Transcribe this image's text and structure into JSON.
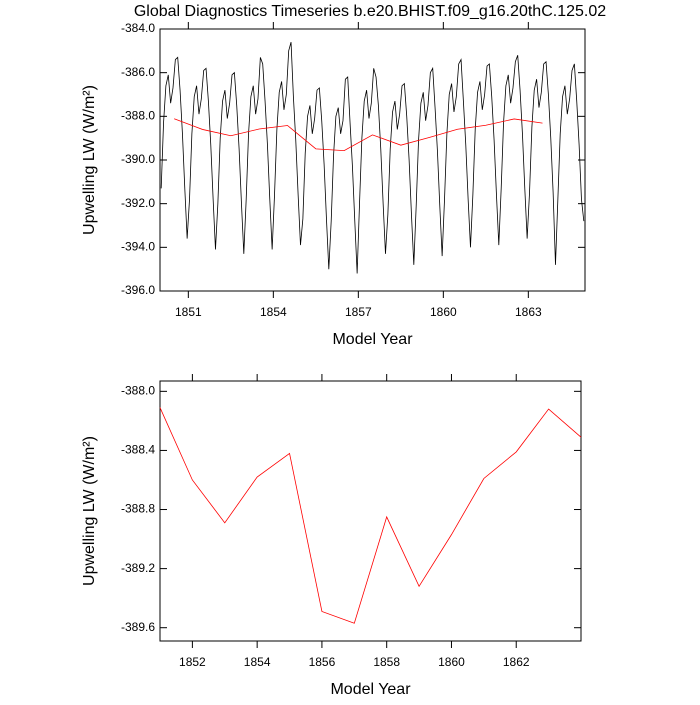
{
  "chart_data": [
    {
      "type": "line",
      "title": "Global Diagnostics Timeseries b.e20.BHIST.f09_g16.20thC.125.02",
      "xlabel": "Model Year",
      "ylabel": "Upwelling LW (W/m²)",
      "xlim": [
        1850,
        1865
      ],
      "xticks": [
        1851,
        1854,
        1857,
        1860,
        1863
      ],
      "ylim": [
        -396,
        -384
      ],
      "yticks": [
        {
          "value": -396,
          "label": "-396.0"
        },
        {
          "value": -394,
          "label": "-394.0"
        },
        {
          "value": -392,
          "label": "-392.0"
        },
        {
          "value": -390,
          "label": "-390.0"
        },
        {
          "value": -388,
          "label": "-388.0"
        },
        {
          "value": -386,
          "label": "-386.0"
        },
        {
          "value": -384,
          "label": "-384.0"
        }
      ],
      "series": [
        {
          "color": "#000000",
          "x": [
            1850.042,
            1850.125,
            1850.208,
            1850.292,
            1850.375,
            1850.458,
            1850.542,
            1850.625,
            1850.708,
            1850.792,
            1850.875,
            1850.958,
            1851.042,
            1851.125,
            1851.208,
            1851.292,
            1851.375,
            1851.458,
            1851.542,
            1851.625,
            1851.708,
            1851.792,
            1851.875,
            1851.958,
            1852.042,
            1852.125,
            1852.208,
            1852.292,
            1852.375,
            1852.458,
            1852.542,
            1852.625,
            1852.708,
            1852.792,
            1852.875,
            1852.958,
            1853.042,
            1853.125,
            1853.208,
            1853.292,
            1853.375,
            1853.458,
            1853.542,
            1853.625,
            1853.708,
            1853.792,
            1853.875,
            1853.958,
            1854.042,
            1854.125,
            1854.208,
            1854.292,
            1854.375,
            1854.458,
            1854.542,
            1854.625,
            1854.708,
            1854.792,
            1854.875,
            1854.958,
            1855.042,
            1855.125,
            1855.208,
            1855.292,
            1855.375,
            1855.458,
            1855.542,
            1855.625,
            1855.708,
            1855.792,
            1855.875,
            1855.958,
            1856.042,
            1856.125,
            1856.208,
            1856.292,
            1856.375,
            1856.458,
            1856.542,
            1856.625,
            1856.708,
            1856.792,
            1856.875,
            1856.958,
            1857.042,
            1857.125,
            1857.208,
            1857.292,
            1857.375,
            1857.458,
            1857.542,
            1857.625,
            1857.708,
            1857.792,
            1857.875,
            1857.958,
            1858.042,
            1858.125,
            1858.208,
            1858.292,
            1858.375,
            1858.458,
            1858.542,
            1858.625,
            1858.708,
            1858.792,
            1858.875,
            1858.958,
            1859.042,
            1859.125,
            1859.208,
            1859.292,
            1859.375,
            1859.458,
            1859.542,
            1859.625,
            1859.708,
            1859.792,
            1859.875,
            1859.958,
            1860.042,
            1860.125,
            1860.208,
            1860.292,
            1860.375,
            1860.458,
            1860.542,
            1860.625,
            1860.708,
            1860.792,
            1860.875,
            1860.958,
            1861.042,
            1861.125,
            1861.208,
            1861.292,
            1861.375,
            1861.458,
            1861.542,
            1861.625,
            1861.708,
            1861.792,
            1861.875,
            1861.958,
            1862.042,
            1862.125,
            1862.208,
            1862.292,
            1862.375,
            1862.458,
            1862.542,
            1862.625,
            1862.708,
            1862.792,
            1862.875,
            1862.958,
            1863.042,
            1863.125,
            1863.208,
            1863.292,
            1863.375,
            1863.458,
            1863.542,
            1863.625,
            1863.708,
            1863.792,
            1863.875,
            1863.958,
            1864.042,
            1864.125,
            1864.208,
            1864.292,
            1864.375,
            1864.458,
            1864.542,
            1864.625,
            1864.708,
            1864.792,
            1864.875,
            1864.958
          ],
          "values": [
            -391.3,
            -388.3,
            -386.6,
            -386.1,
            -387.4,
            -386.7,
            -385.4,
            -385.3,
            -386.8,
            -388.8,
            -391.3,
            -393.6,
            -391.8,
            -388.8,
            -387.1,
            -386.6,
            -387.9,
            -387.2,
            -385.9,
            -385.8,
            -387.3,
            -389.3,
            -391.8,
            -394.1,
            -392.0,
            -389.0,
            -387.3,
            -386.8,
            -388.1,
            -387.4,
            -386.1,
            -386.0,
            -387.5,
            -389.5,
            -392.0,
            -394.3,
            -391.8,
            -388.8,
            -387.1,
            -386.6,
            -387.9,
            -387.2,
            -385.3,
            -385.6,
            -387.3,
            -389.3,
            -391.8,
            -394.1,
            -391.6,
            -388.6,
            -386.9,
            -386.4,
            -387.7,
            -387.0,
            -385.0,
            -384.6,
            -387.1,
            -389.1,
            -391.6,
            -393.9,
            -392.7,
            -389.7,
            -388.0,
            -387.5,
            -388.8,
            -388.1,
            -386.8,
            -386.7,
            -388.2,
            -390.2,
            -392.7,
            -395.0,
            -392.8,
            -389.8,
            -388.0,
            -387.6,
            -388.8,
            -388.2,
            -386.3,
            -386.2,
            -388.3,
            -390.3,
            -392.8,
            -395.2,
            -392.0,
            -389.0,
            -387.3,
            -386.8,
            -388.1,
            -387.4,
            -385.8,
            -386.2,
            -387.5,
            -389.5,
            -392.0,
            -394.3,
            -392.5,
            -389.5,
            -387.8,
            -387.3,
            -388.6,
            -387.9,
            -386.6,
            -386.5,
            -388.0,
            -390.0,
            -392.5,
            -394.8,
            -392.1,
            -389.1,
            -387.4,
            -386.9,
            -388.2,
            -387.5,
            -386.0,
            -385.8,
            -387.6,
            -389.6,
            -392.1,
            -394.4,
            -391.8,
            -388.8,
            -387.0,
            -386.5,
            -387.8,
            -387.1,
            -385.6,
            -385.4,
            -387.3,
            -389.3,
            -391.8,
            -394.0,
            -391.6,
            -388.6,
            -386.9,
            -386.4,
            -387.7,
            -387.0,
            -385.7,
            -385.6,
            -387.1,
            -389.1,
            -391.6,
            -393.9,
            -391.3,
            -388.3,
            -386.6,
            -386.1,
            -387.4,
            -386.7,
            -385.5,
            -385.2,
            -386.8,
            -388.8,
            -391.3,
            -393.6,
            -391.5,
            -388.5,
            -386.8,
            -386.3,
            -387.6,
            -386.9,
            -385.6,
            -385.5,
            -387.0,
            -389.0,
            -391.5,
            -394.8,
            -391.8,
            -388.8,
            -387.1,
            -386.6,
            -387.9,
            -387.2,
            -385.9,
            -385.6,
            -387.3,
            -389.3,
            -391.8,
            -392.8
          ]
        },
        {
          "color": "#ff0000",
          "x": [
            1850.5,
            1851.5,
            1852.5,
            1853.5,
            1854.5,
            1855.5,
            1856.5,
            1857.5,
            1858.5,
            1859.5,
            1860.5,
            1861.5,
            1862.5,
            1863.5
          ],
          "values": [
            -388.11,
            -388.6,
            -388.89,
            -388.58,
            -388.42,
            -389.49,
            -389.57,
            -388.85,
            -389.32,
            -388.97,
            -388.59,
            -388.41,
            -388.12,
            -388.31
          ]
        }
      ]
    },
    {
      "type": "line",
      "xlabel": "Model Year",
      "ylabel": "Upwelling LW (W/m²)",
      "xlim": [
        1851,
        1864
      ],
      "xticks": [
        1852,
        1854,
        1856,
        1858,
        1860,
        1862
      ],
      "ylim": [
        -389.69,
        -387.93
      ],
      "yticks": [
        {
          "value": -389.6,
          "label": "-389.6"
        },
        {
          "value": -389.2,
          "label": "-389.2"
        },
        {
          "value": -388.8,
          "label": "-388.8"
        },
        {
          "value": -388.4,
          "label": "-388.4"
        },
        {
          "value": -388.0,
          "label": "-388.0"
        }
      ],
      "series": [
        {
          "color": "#ff0000",
          "x": [
            1851,
            1852,
            1853,
            1854,
            1855,
            1856,
            1857,
            1858,
            1859,
            1860,
            1861,
            1862,
            1863,
            1864
          ],
          "values": [
            -388.11,
            -388.6,
            -388.89,
            -388.58,
            -388.42,
            -389.49,
            -389.57,
            -388.85,
            -389.32,
            -388.97,
            -388.59,
            -388.41,
            -388.12,
            -388.31
          ]
        }
      ]
    }
  ]
}
